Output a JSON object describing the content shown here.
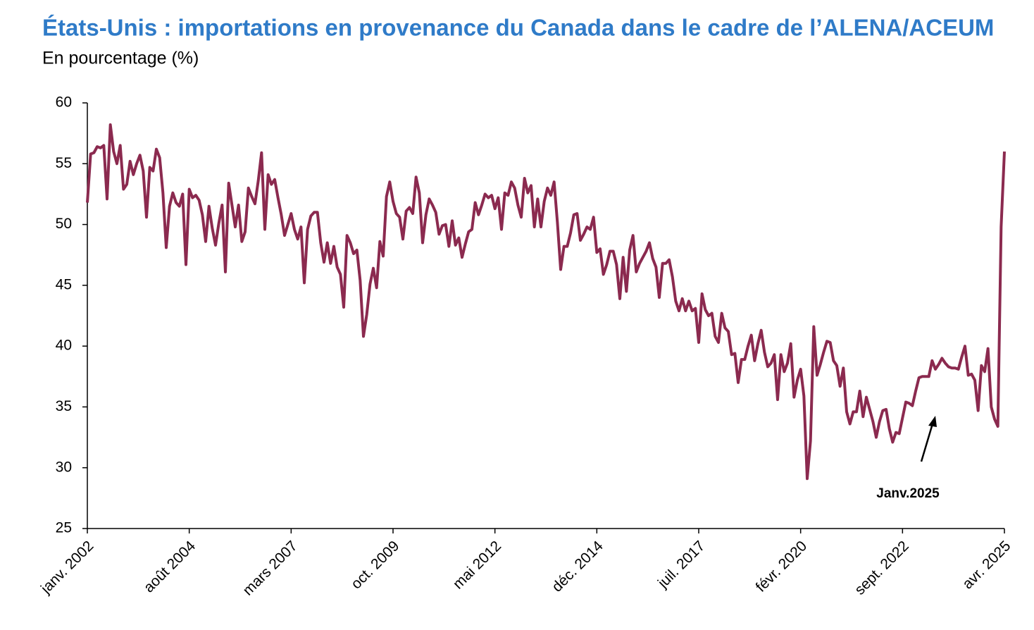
{
  "chart_data": {
    "type": "line",
    "title": "États-Unis : importations en provenance du Canada dans le cadre de l’ALENA/ACEUM",
    "subtitle": "En pourcentage (%)",
    "annotation": "Janv.2025",
    "color": "#8b2a4f",
    "ylim": [
      25,
      60
    ],
    "yticks": [
      25,
      30,
      35,
      40,
      45,
      50,
      55,
      60
    ],
    "categories": [
      "janv. 2002",
      null,
      null,
      null,
      null,
      null,
      null,
      null,
      null,
      null,
      null,
      null,
      null,
      null,
      null,
      null,
      null,
      null,
      null,
      null,
      null,
      null,
      null,
      null,
      null,
      null,
      null,
      null,
      null,
      null,
      null,
      "août 2004",
      null,
      null,
      null,
      null,
      null,
      null,
      null,
      null,
      null,
      null,
      null,
      null,
      null,
      null,
      null,
      null,
      null,
      null,
      null,
      null,
      null,
      null,
      null,
      null,
      null,
      null,
      null,
      null,
      null,
      null,
      "mars 2007",
      null,
      null,
      null,
      null,
      null,
      null,
      null,
      null,
      null,
      null,
      null,
      null,
      null,
      null,
      null,
      null,
      null,
      null,
      null,
      null,
      null,
      null,
      null,
      null,
      null,
      null,
      null,
      null,
      null,
      null,
      "oct. 2009",
      null,
      null,
      null,
      null,
      null,
      null,
      null,
      null,
      null,
      null,
      null,
      null,
      null,
      null,
      null,
      null,
      null,
      null,
      null,
      null,
      null,
      null,
      null,
      null,
      null,
      null,
      null,
      null,
      null,
      null,
      "mai 2012",
      null,
      null,
      null,
      null,
      null,
      null,
      null,
      null,
      null,
      null,
      null,
      null,
      null,
      null,
      null,
      null,
      null,
      null,
      null,
      null,
      null,
      null,
      null,
      null,
      null,
      null,
      null,
      null,
      null,
      null,
      "déc. 2014",
      null,
      null,
      null,
      null,
      null,
      null,
      null,
      null,
      null,
      null,
      null,
      null,
      null,
      null,
      null,
      null,
      null,
      null,
      null,
      null,
      null,
      null,
      null,
      null,
      null,
      null,
      null,
      null,
      null,
      null,
      "juil. 2017",
      null,
      null,
      null,
      null,
      null,
      null,
      null,
      null,
      null,
      null,
      null,
      null,
      null,
      null,
      null,
      null,
      null,
      null,
      null,
      null,
      null,
      null,
      null,
      null,
      null,
      null,
      null,
      null,
      null,
      null,
      "févr. 2020",
      null,
      null,
      null,
      null,
      null,
      null,
      null,
      null,
      null,
      null,
      null,
      null,
      null,
      null,
      null,
      null,
      null,
      null,
      null,
      null,
      null,
      null,
      null,
      null,
      null,
      null,
      null,
      null,
      null,
      null,
      "sept. 2022",
      null,
      null,
      null,
      null,
      null,
      null,
      null,
      null,
      null,
      null,
      null,
      null,
      null,
      null,
      null,
      null,
      null,
      null,
      null,
      null,
      null,
      null,
      null,
      null,
      null,
      null,
      null,
      null,
      null,
      null,
      "avr. 2025"
    ],
    "values": [
      51.8,
      55.8,
      55.9,
      56.4,
      56.3,
      56.5,
      52.1,
      58.2,
      56,
      55,
      56.5,
      52.9,
      53.3,
      55.2,
      54.1,
      55,
      55.7,
      54.4,
      50.6,
      54.7,
      54.4,
      56.2,
      55.5,
      52.6,
      48.1,
      51.5,
      52.6,
      51.8,
      51.5,
      52.5,
      46.7,
      52.9,
      52.2,
      52.4,
      52,
      50.8,
      48.6,
      51.5,
      49.7,
      48.3,
      50.1,
      51.6,
      46.1,
      53.4,
      51.6,
      49.8,
      51.6,
      48.6,
      49.4,
      53,
      52.3,
      51.7,
      53.6,
      55.9,
      49.6,
      54.1,
      53.3,
      53.7,
      52.2,
      50.8,
      49.1,
      50,
      50.9,
      49.6,
      48.8,
      49.8,
      45.2,
      49.6,
      50.7,
      51,
      51,
      48.5,
      46.9,
      48.5,
      46.8,
      48.2,
      46.5,
      45.9,
      43.2,
      49.1,
      48.5,
      47.6,
      47.9,
      45.4,
      40.8,
      42.6,
      45.1,
      46.4,
      44.8,
      48.6,
      47.4,
      52.3,
      53.5,
      51.9,
      50.9,
      50.6,
      48.8,
      51.1,
      51.4,
      50.9,
      53.9,
      52.6,
      48.5,
      50.8,
      52.1,
      51.6,
      51,
      49.2,
      49.9,
      50,
      48.2,
      50.3,
      48.3,
      48.9,
      47.3,
      48.4,
      49.4,
      49.6,
      51.8,
      50.8,
      51.6,
      52.5,
      52.2,
      52.4,
      51.3,
      52.2,
      49.6,
      52.6,
      52.4,
      53.5,
      53,
      51.6,
      50.6,
      53.8,
      52.6,
      53.2,
      49.8,
      52.1,
      49.8,
      51.9,
      53,
      52.4,
      53.5,
      50.2,
      46.3,
      48.2,
      48.2,
      49.3,
      50.8,
      50.9,
      48.7,
      49.2,
      49.8,
      49.6,
      50.6,
      47.7,
      48,
      45.9,
      46.7,
      47.8,
      47.8,
      46.7,
      43.9,
      47.3,
      44.5,
      47.9,
      49.1,
      46.1,
      46.8,
      47.3,
      47.8,
      48.5,
      47.2,
      46.5,
      44,
      46.8,
      46.8,
      47.1,
      45.7,
      43.7,
      42.9,
      43.9,
      42.9,
      43.7,
      42.9,
      43.1,
      40.3,
      44.3,
      43,
      42.5,
      42.7,
      40.8,
      40.3,
      42.7,
      41.5,
      41.2,
      39.3,
      39.4,
      37,
      38.9,
      38.9,
      40,
      40.9,
      38.8,
      40.2,
      41.3,
      39.5,
      38.3,
      38.6,
      39.3,
      35.6,
      39.3,
      37.9,
      38.6,
      40.2,
      35.8,
      37.2,
      38.1,
      35.9,
      29.1,
      32.2,
      41.6,
      37.6,
      38.5,
      39.5,
      40.4,
      40.3,
      38.8,
      38.4,
      36.7,
      38.2,
      34.6,
      33.6,
      34.6,
      34.6,
      36.3,
      34.2,
      35.8,
      34.8,
      33.8,
      32.5,
      33.8,
      34.7,
      34.8,
      33.2,
      32.1,
      32.9,
      32.8,
      34.1,
      35.4,
      35.3,
      35.1,
      36.3,
      37.4,
      37.5,
      37.5,
      37.5,
      38.8,
      38.1,
      38.5,
      39,
      38.6,
      38.3,
      38.2,
      38.2,
      38.1,
      39.1,
      40,
      37.6,
      37.7,
      37.2,
      34.7,
      38.4,
      37.9,
      39.8,
      35,
      34,
      33.4,
      49.8,
      56
    ]
  }
}
